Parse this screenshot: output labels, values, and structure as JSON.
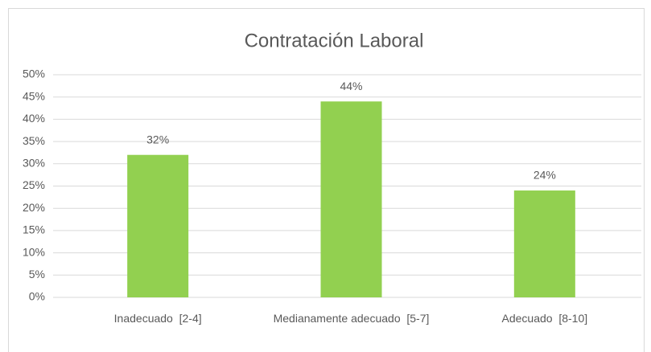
{
  "chart_data": {
    "type": "bar",
    "title": "Contratación Laboral",
    "categories": [
      "Inadecuado  [2-4]",
      "Medianamente adecuado  [5-7]",
      "Adecuado  [8-10]"
    ],
    "values": [
      32,
      44,
      24
    ],
    "value_labels": [
      "32%",
      "44%",
      "24%"
    ],
    "color": "#92d050",
    "ylim": [
      0,
      50
    ],
    "yticks": [
      {
        "value": 0,
        "label": "0%"
      },
      {
        "value": 5,
        "label": "5%"
      },
      {
        "value": 10,
        "label": "10%"
      },
      {
        "value": 15,
        "label": "15%"
      },
      {
        "value": 20,
        "label": "20%"
      },
      {
        "value": 25,
        "label": "25%"
      },
      {
        "value": 30,
        "label": "30%"
      },
      {
        "value": 35,
        "label": "35%"
      },
      {
        "value": 40,
        "label": "40%"
      },
      {
        "value": 45,
        "label": "45%"
      },
      {
        "value": 50,
        "label": "50%"
      }
    ],
    "grid": true
  }
}
